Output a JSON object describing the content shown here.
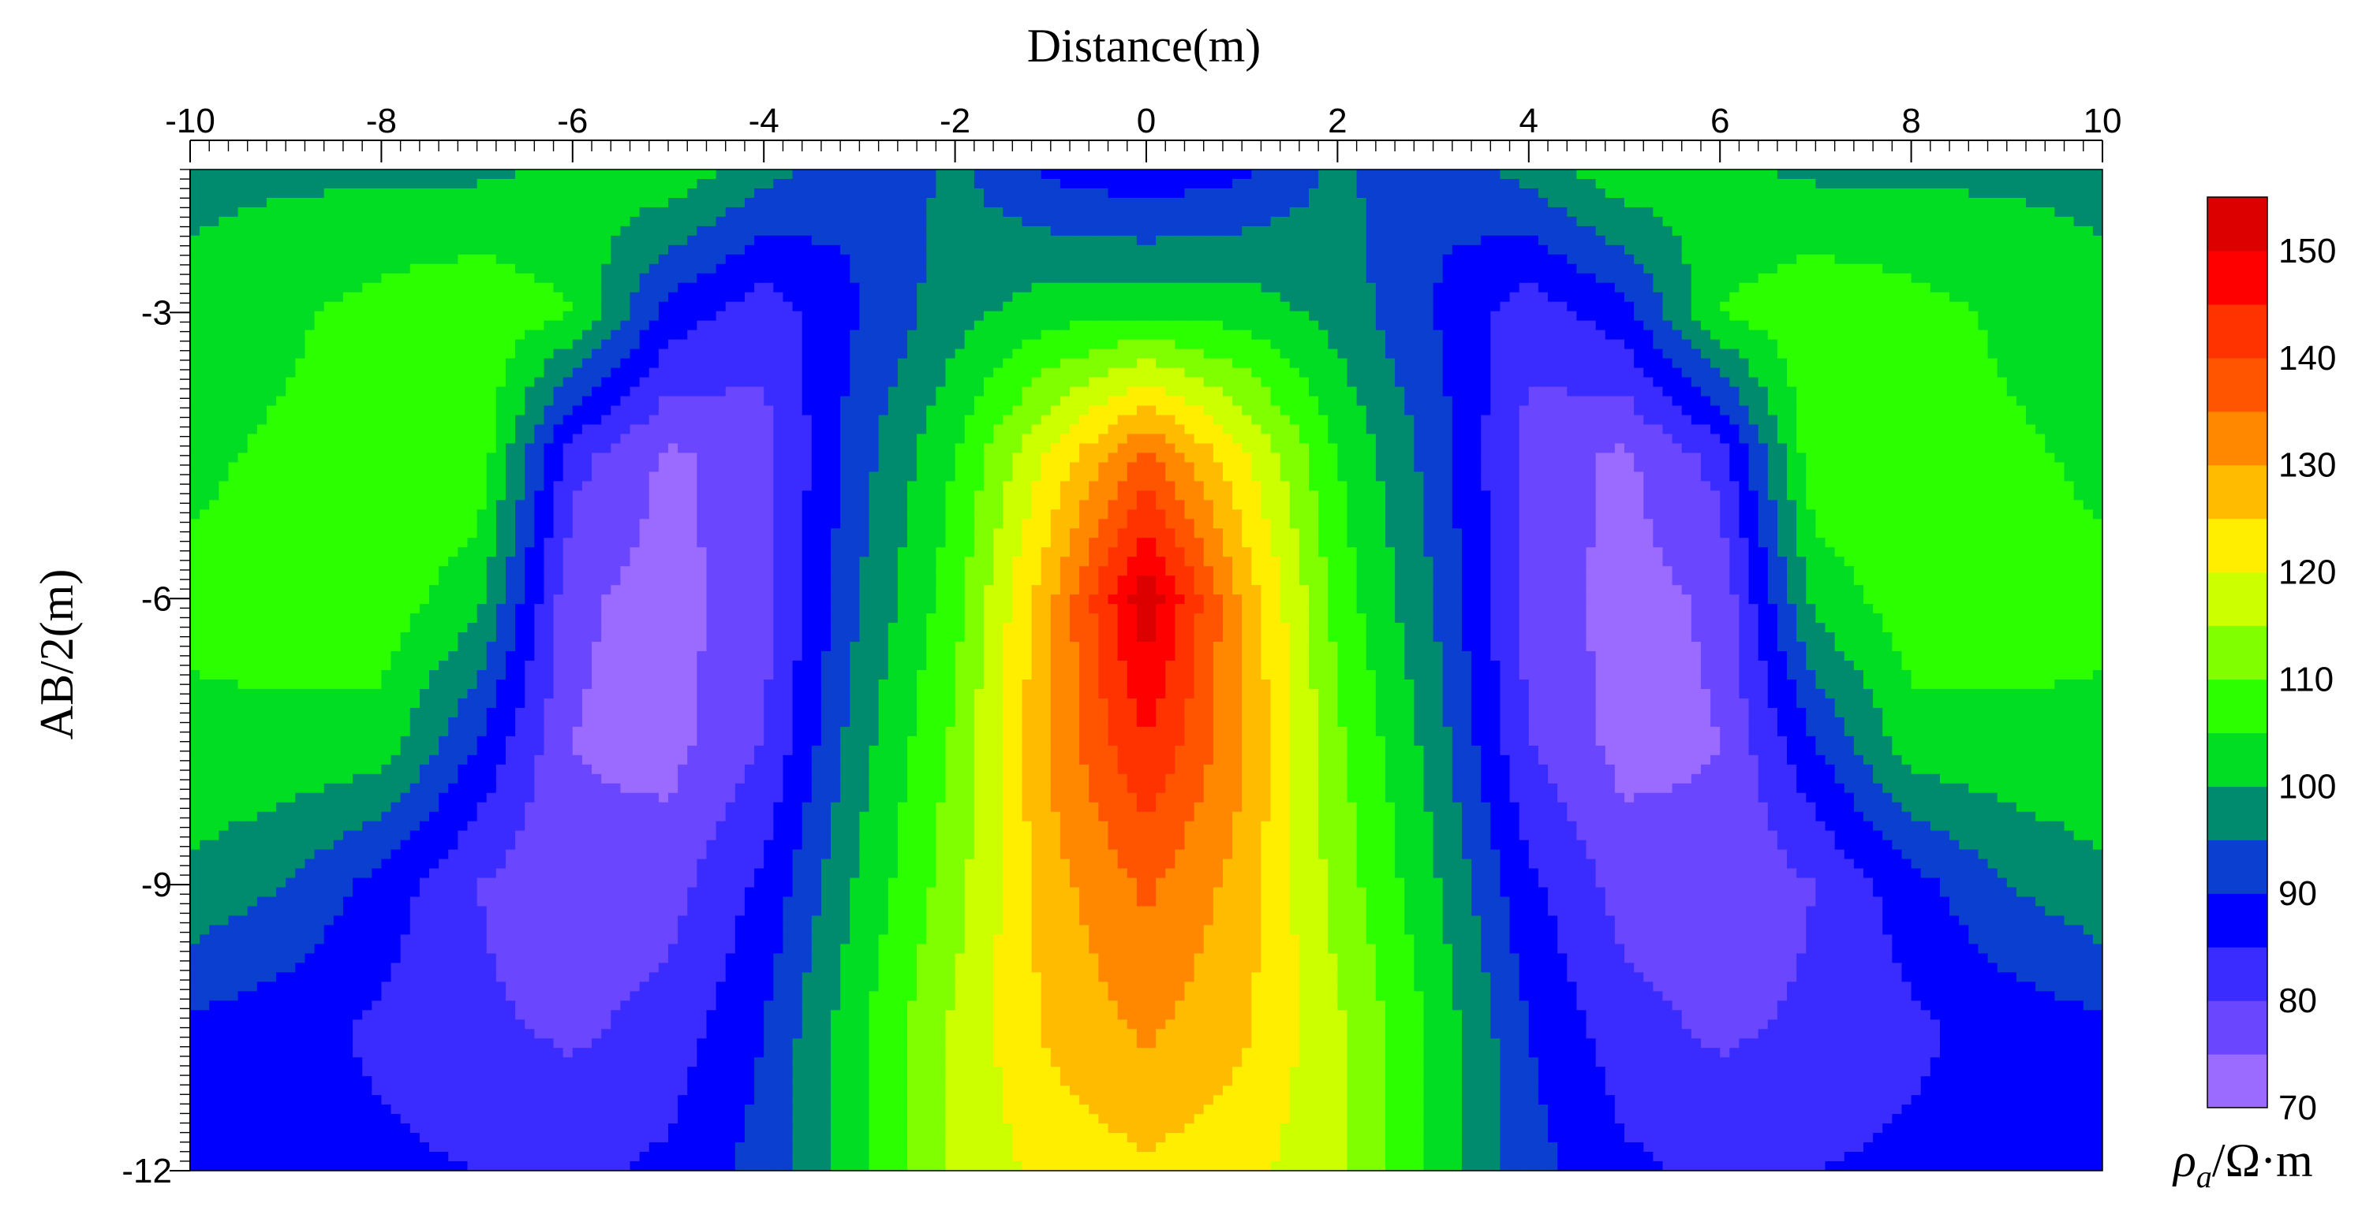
{
  "chart_data": {
    "type": "heatmap",
    "subtype": "filled-contour",
    "title": "",
    "xlabel": "Distance(m)",
    "ylabel": "AB/2(m)",
    "xlim": [
      -10,
      10
    ],
    "ylim": [
      -12,
      -1.5
    ],
    "x_ticks": [
      -10,
      -8,
      -6,
      -4,
      -2,
      0,
      2,
      4,
      6,
      8,
      10
    ],
    "x_tick_labels": [
      "-10",
      "-8",
      "-6",
      "-4",
      "-2",
      "0",
      "2",
      "4",
      "6",
      "8",
      "10"
    ],
    "y_ticks": [
      -3,
      -6,
      -9,
      -12
    ],
    "y_tick_labels": [
      "-3",
      "-6",
      "-9",
      "-12"
    ],
    "x_axis_position": "top",
    "grid": false,
    "legend": "right colorbar",
    "colorbar": {
      "unit_label": "ρa/Ω·m",
      "levels": [
        70,
        75,
        80,
        85,
        90,
        95,
        100,
        105,
        110,
        115,
        120,
        125,
        130,
        135,
        140,
        145,
        150,
        155
      ],
      "tick_values": [
        70,
        80,
        90,
        100,
        110,
        120,
        130,
        140,
        150
      ],
      "tick_labels": [
        "70",
        "80",
        "90",
        "100",
        "110",
        "120",
        "130",
        "140",
        "150"
      ],
      "colors": [
        "#9b6bff",
        "#6a46ff",
        "#3a2cff",
        "#0000ff",
        "#0a3fcf",
        "#008a6e",
        "#00dd22",
        "#2cff00",
        "#80ff00",
        "#ccff00",
        "#ffee00",
        "#ffbb00",
        "#ff8800",
        "#ff5500",
        "#ff3300",
        "#ff0000",
        "#dd0000"
      ]
    },
    "values_estimated": {
      "x": [
        -10,
        -9,
        -8,
        -7,
        -6,
        -5,
        -4,
        -3,
        -2,
        -1,
        0,
        1,
        2,
        3,
        4,
        5,
        6,
        7,
        8,
        9,
        10
      ],
      "y": [
        -1.5,
        -3,
        -4.5,
        -6,
        -7.5,
        -9,
        -10.5,
        -12
      ],
      "z": [
        [
          99,
          99,
          99,
          99,
          101,
          104,
          97,
          91,
          96,
          89,
          86,
          89,
          96,
          91,
          97,
          104,
          101,
          99,
          99,
          99,
          99
        ],
        [
          101,
          104,
          107,
          109,
          105,
          88,
          82,
          90,
          98,
          103,
          104,
          103,
          98,
          90,
          82,
          88,
          105,
          109,
          107,
          104,
          101
        ],
        [
          104,
          106,
          108,
          109,
          82,
          74,
          78,
          93,
          105,
          121,
          136,
          121,
          105,
          93,
          78,
          74,
          82,
          109,
          108,
          106,
          104
        ],
        [
          106,
          107,
          108,
          102,
          76,
          73,
          78,
          95,
          108,
          129,
          154,
          129,
          108,
          95,
          78,
          73,
          76,
          102,
          108,
          107,
          106
        ],
        [
          104,
          104,
          103,
          90,
          75,
          73,
          80,
          98,
          111,
          131,
          145,
          131,
          111,
          98,
          80,
          73,
          75,
          90,
          103,
          104,
          104
        ],
        [
          99,
          95,
          88,
          80,
          76,
          78,
          86,
          101,
          113,
          128,
          136,
          128,
          113,
          101,
          86,
          78,
          76,
          80,
          88,
          95,
          99
        ],
        [
          89,
          87,
          84,
          81,
          79,
          82,
          90,
          104,
          116,
          126,
          131,
          126,
          116,
          104,
          90,
          82,
          79,
          81,
          84,
          87,
          89
        ],
        [
          86,
          86,
          86,
          85,
          84,
          86,
          92,
          104,
          116,
          122,
          124,
          122,
          116,
          104,
          92,
          86,
          84,
          85,
          86,
          86,
          86
        ]
      ]
    }
  }
}
